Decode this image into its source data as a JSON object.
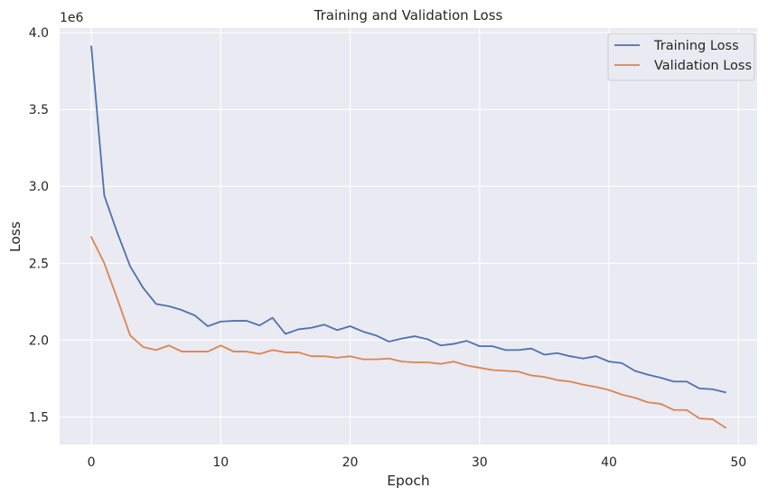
{
  "chart_data": {
    "type": "line",
    "title": "Training and Validation Loss",
    "xlabel": "Epoch",
    "ylabel": "Loss",
    "y_offset_label": "1e6",
    "xlim": [
      -2.45,
      51.45
    ],
    "ylim": [
      1.32,
      4.03
    ],
    "xticks": [
      0,
      10,
      20,
      30,
      40,
      50
    ],
    "yticks": [
      1.5,
      2.0,
      2.5,
      3.0,
      3.5,
      4.0
    ],
    "ytick_labels": [
      "1.5",
      "2.0",
      "2.5",
      "3.0",
      "3.5",
      "4.0"
    ],
    "grid": true,
    "legend_position": "top-right",
    "x": [
      0,
      1,
      2,
      3,
      4,
      5,
      6,
      7,
      8,
      9,
      10,
      11,
      12,
      13,
      14,
      15,
      16,
      17,
      18,
      19,
      20,
      21,
      22,
      23,
      24,
      25,
      26,
      27,
      28,
      29,
      30,
      31,
      32,
      33,
      34,
      35,
      36,
      37,
      38,
      39,
      40,
      41,
      42,
      43,
      44,
      45,
      46,
      47,
      48,
      49
    ],
    "series": [
      {
        "name": "Training Loss",
        "color": "#4c72b0",
        "values": [
          3.91,
          2.94,
          2.7,
          2.48,
          2.34,
          2.235,
          2.22,
          2.195,
          2.16,
          2.09,
          2.12,
          2.125,
          2.125,
          2.095,
          2.145,
          2.04,
          2.07,
          2.08,
          2.1,
          2.065,
          2.09,
          2.055,
          2.03,
          1.99,
          2.01,
          2.025,
          2.005,
          1.965,
          1.975,
          1.995,
          1.96,
          1.96,
          1.935,
          1.935,
          1.945,
          1.905,
          1.915,
          1.895,
          1.88,
          1.895,
          1.86,
          1.85,
          1.8,
          1.775,
          1.755,
          1.73,
          1.73,
          1.685,
          1.68,
          1.66
        ]
      },
      {
        "name": "Validation Loss",
        "color": "#dd8452",
        "values": [
          2.67,
          2.5,
          2.27,
          2.03,
          1.955,
          1.935,
          1.965,
          1.925,
          1.925,
          1.925,
          1.965,
          1.925,
          1.925,
          1.91,
          1.935,
          1.92,
          1.92,
          1.895,
          1.895,
          1.885,
          1.895,
          1.875,
          1.875,
          1.88,
          1.86,
          1.855,
          1.855,
          1.845,
          1.86,
          1.835,
          1.82,
          1.805,
          1.8,
          1.795,
          1.77,
          1.76,
          1.74,
          1.73,
          1.71,
          1.695,
          1.675,
          1.645,
          1.625,
          1.595,
          1.585,
          1.545,
          1.545,
          1.49,
          1.485,
          1.43
        ]
      }
    ]
  }
}
